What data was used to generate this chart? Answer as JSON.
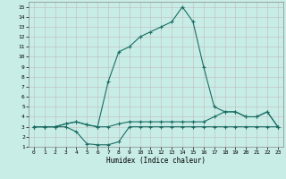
{
  "xlabel": "Humidex (Indice chaleur)",
  "bg_color": "#c8ece6",
  "line_color": "#1a6e64",
  "xlim": [
    -0.5,
    23.5
  ],
  "ylim": [
    1,
    15.5
  ],
  "xticks": [
    0,
    1,
    2,
    3,
    4,
    5,
    6,
    7,
    8,
    9,
    10,
    11,
    12,
    13,
    14,
    15,
    16,
    17,
    18,
    19,
    20,
    21,
    22,
    23
  ],
  "yticks": [
    1,
    2,
    3,
    4,
    5,
    6,
    7,
    8,
    9,
    10,
    11,
    12,
    13,
    14,
    15
  ],
  "curve_top": {
    "x": [
      0,
      1,
      2,
      3,
      4,
      5,
      6,
      7,
      8,
      9,
      10,
      11,
      12,
      13,
      14,
      15,
      16,
      17,
      18,
      19,
      20,
      21,
      22,
      23
    ],
    "y": [
      3,
      3,
      3,
      3.3,
      3.5,
      3.2,
      3,
      7.5,
      10.5,
      11,
      12,
      12.5,
      13,
      13.5,
      15,
      13.5,
      9,
      5,
      4.5,
      4.5,
      4,
      4,
      4.5,
      3
    ]
  },
  "curve_mid": {
    "x": [
      0,
      1,
      2,
      3,
      4,
      5,
      6,
      7,
      8,
      9,
      10,
      11,
      12,
      13,
      14,
      15,
      16,
      17,
      18,
      19,
      20,
      21,
      22,
      23
    ],
    "y": [
      3,
      3,
      3,
      3.3,
      3.5,
      3.2,
      3,
      3,
      3.3,
      3.5,
      3.5,
      3.5,
      3.5,
      3.5,
      3.5,
      3.5,
      3.5,
      4,
      4.5,
      4.5,
      4,
      4,
      4.5,
      3
    ]
  },
  "curve_bot": {
    "x": [
      0,
      1,
      2,
      3,
      4,
      5,
      6,
      7,
      8,
      9,
      10,
      11,
      12,
      13,
      14,
      15,
      16,
      17,
      18,
      19,
      20,
      21,
      22,
      23
    ],
    "y": [
      3,
      3,
      3,
      3,
      2.5,
      1.3,
      1.2,
      1.2,
      1.5,
      3,
      3,
      3,
      3,
      3,
      3,
      3,
      3,
      3,
      3,
      3,
      3,
      3,
      3,
      3
    ]
  }
}
